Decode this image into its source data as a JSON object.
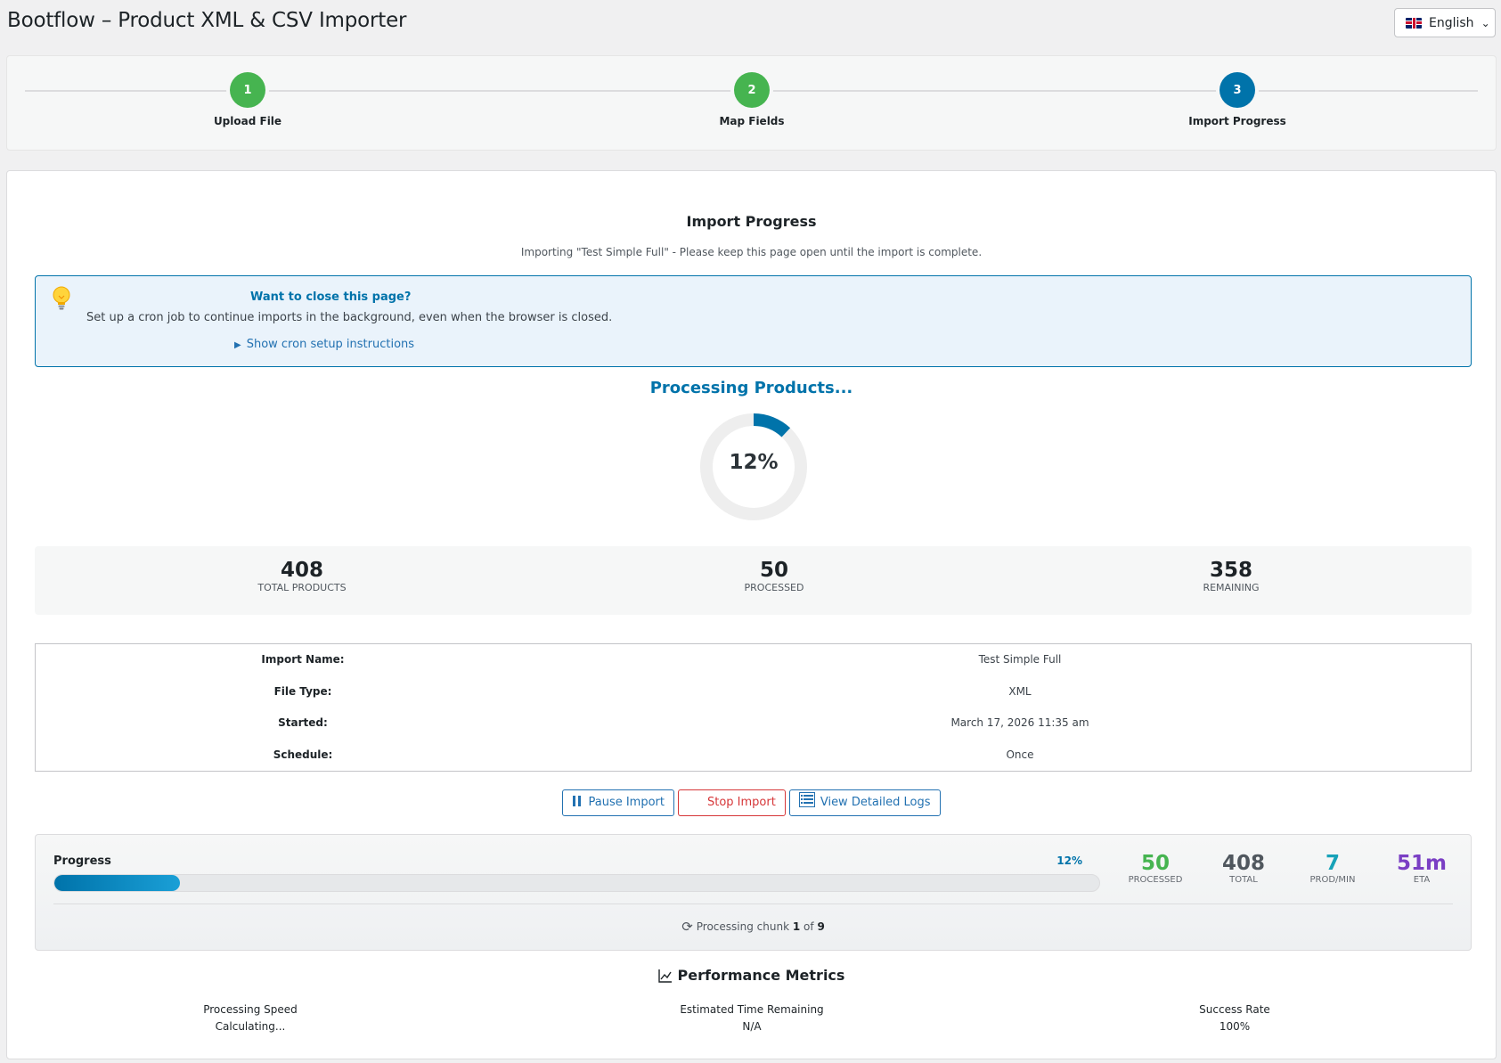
{
  "app": {
    "title": "Bootflow – Product XML & CSV Importer"
  },
  "language": {
    "label": "English",
    "flag_icon": "uk-flag-icon"
  },
  "steps": [
    {
      "number": "1",
      "label": "Upload File",
      "state": "done"
    },
    {
      "number": "2",
      "label": "Map Fields",
      "state": "done"
    },
    {
      "number": "3",
      "label": "Import Progress",
      "state": "active"
    }
  ],
  "header": {
    "title": "Import Progress",
    "subtitle": "Importing \"Test Simple Full\" - Please keep this page open until the import is complete."
  },
  "notice": {
    "icon": "lightbulb-icon",
    "title": "Want to close this page?",
    "text": "Set up a cron job to continue imports in the background, even when the browser is closed.",
    "link": "Show cron setup instructions"
  },
  "status": {
    "heading": "Processing Products...",
    "percent_label": "12%",
    "percent_value": 0.12
  },
  "stats": [
    {
      "value": "408",
      "label": "TOTAL PRODUCTS"
    },
    {
      "value": "50",
      "label": "PROCESSED"
    },
    {
      "value": "358",
      "label": "REMAINING"
    }
  ],
  "info": [
    {
      "key": "Import Name:",
      "value": "Test Simple Full"
    },
    {
      "key": "File Type:",
      "value": "XML"
    },
    {
      "key": "Started:",
      "value": "March 17, 2026 11:35 am"
    },
    {
      "key": "Schedule:",
      "value": "Once"
    }
  ],
  "actions": {
    "pause": "Pause Import",
    "stop": "Stop Import",
    "logs": "View Detailed Logs"
  },
  "progress": {
    "label": "Progress",
    "percent_label": "12%",
    "fraction": 0.12,
    "metrics": [
      {
        "value": "50",
        "label": "PROCESSED",
        "color": "#46b450"
      },
      {
        "value": "408",
        "label": "TOTAL",
        "color": "#50575e"
      },
      {
        "value": "7",
        "label": "PROD/MIN",
        "color": "#17a2b8"
      },
      {
        "value": "51m",
        "label": "ETA",
        "color": "#7a3fc4"
      }
    ],
    "chunk_prefix": "Processing chunk",
    "chunk_current": "1",
    "chunk_of": "of",
    "chunk_total": "9"
  },
  "performance": {
    "title": "Performance Metrics",
    "items": [
      {
        "label": "Processing Speed",
        "value": "Calculating..."
      },
      {
        "label": "Estimated Time Remaining",
        "value": "N/A"
      },
      {
        "label": "Success Rate",
        "value": "100%"
      }
    ]
  },
  "colors": {
    "accent": "#0073aa",
    "done": "#46b450",
    "danger": "#d63638"
  }
}
